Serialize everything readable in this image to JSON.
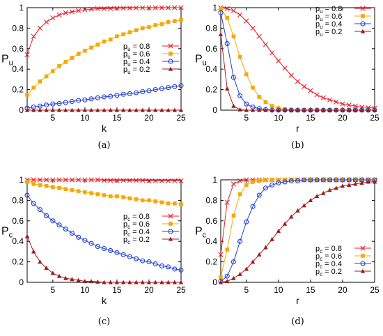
{
  "series_styles": [
    {
      "color": "#e8202a",
      "marker": "x"
    },
    {
      "color": "#f7a800",
      "marker": "square"
    },
    {
      "color": "#1f3fd8",
      "marker": "circle"
    },
    {
      "color": "#9e1b1b",
      "marker": "triangle"
    }
  ],
  "chart_data": [
    {
      "panel": "(a)",
      "type": "line",
      "xlabel": "k",
      "ylabel": "P",
      "ylabel_sub": "u",
      "xlim": [
        1,
        25
      ],
      "ylim": [
        0,
        1
      ],
      "xticks": [
        5,
        10,
        15,
        20,
        25
      ],
      "yticks": [
        0,
        0.2,
        0.4,
        0.6,
        0.8,
        1
      ],
      "ytick_labels": [
        "0",
        "0.2",
        "0.4",
        "0.6",
        "0.8",
        "1"
      ],
      "legend": "middle-right",
      "x": [
        1,
        2,
        3,
        4,
        5,
        6,
        7,
        8,
        9,
        10,
        11,
        12,
        13,
        14,
        15,
        16,
        17,
        18,
        19,
        20,
        21,
        22,
        23,
        24,
        25
      ],
      "series": [
        {
          "name": "pu = 0.8",
          "label_main": "p",
          "label_sub": "u",
          "label_val": " = 0.8",
          "values": [
            0.54,
            0.72,
            0.8,
            0.86,
            0.9,
            0.93,
            0.95,
            0.96,
            0.97,
            0.98,
            0.985,
            0.99,
            0.99,
            0.993,
            0.995,
            0.996,
            0.997,
            0.998,
            0.998,
            0.999,
            0.999,
            0.999,
            0.999,
            1.0,
            1.0
          ]
        },
        {
          "name": "pu = 0.6",
          "label_main": "p",
          "label_sub": "u",
          "label_val": " = 0.6",
          "values": [
            0.15,
            0.22,
            0.28,
            0.33,
            0.38,
            0.43,
            0.47,
            0.51,
            0.55,
            0.58,
            0.61,
            0.64,
            0.67,
            0.69,
            0.72,
            0.74,
            0.76,
            0.78,
            0.8,
            0.81,
            0.83,
            0.84,
            0.86,
            0.87,
            0.88
          ]
        },
        {
          "name": "pu = 0.4",
          "label_main": "p",
          "label_sub": "u",
          "label_val": " = 0.4",
          "values": [
            0.02,
            0.03,
            0.04,
            0.05,
            0.06,
            0.065,
            0.075,
            0.085,
            0.095,
            0.1,
            0.11,
            0.12,
            0.13,
            0.135,
            0.145,
            0.155,
            0.16,
            0.17,
            0.18,
            0.19,
            0.2,
            0.21,
            0.22,
            0.23,
            0.24
          ]
        },
        {
          "name": "pu = 0.2",
          "label_main": "p",
          "label_sub": "u",
          "label_val": " = 0.2",
          "values": [
            0.0,
            0.0,
            0.0,
            0.0,
            0.0,
            0.0,
            0.0,
            0.0,
            0.0,
            0.0,
            0.0,
            0.0,
            0.0,
            0.0,
            0.0,
            0.0,
            0.0,
            0.0,
            0.0,
            0.0,
            0.0,
            0.0,
            0.0,
            0.0,
            0.0
          ]
        }
      ]
    },
    {
      "panel": "(b)",
      "type": "line",
      "xlabel": "r",
      "ylabel": "P",
      "ylabel_sub": "u",
      "xlim": [
        1,
        25
      ],
      "ylim": [
        0,
        1
      ],
      "xticks": [
        5,
        10,
        15,
        20,
        25
      ],
      "yticks": [
        0,
        0.2,
        0.4,
        0.6,
        0.8,
        1
      ],
      "ytick_labels": [
        "0",
        "0.2",
        "0.4",
        "0.6",
        "0.8",
        "1"
      ],
      "legend": "top-right",
      "x": [
        1,
        2,
        3,
        4,
        5,
        6,
        7,
        8,
        9,
        10,
        11,
        12,
        13,
        14,
        15,
        16,
        17,
        18,
        19,
        20,
        21,
        22,
        23,
        24,
        25
      ],
      "series": [
        {
          "name": "pu = 0.8",
          "label_main": "p",
          "label_sub": "u",
          "label_val": " = 0.8",
          "values": [
            1.0,
            0.99,
            0.97,
            0.93,
            0.87,
            0.8,
            0.72,
            0.64,
            0.56,
            0.48,
            0.41,
            0.34,
            0.28,
            0.23,
            0.19,
            0.15,
            0.12,
            0.1,
            0.08,
            0.06,
            0.05,
            0.04,
            0.03,
            0.025,
            0.02
          ]
        },
        {
          "name": "pu = 0.6",
          "label_main": "p",
          "label_sub": "u",
          "label_val": " = 0.6",
          "values": [
            0.99,
            0.9,
            0.72,
            0.52,
            0.35,
            0.22,
            0.13,
            0.08,
            0.04,
            0.02,
            0.01,
            0.005,
            0.0,
            0.0,
            0.0,
            0.0,
            0.0,
            0.0,
            0.0,
            0.0,
            0.0,
            0.0,
            0.0,
            0.0,
            0.0
          ]
        },
        {
          "name": "pu = 0.4",
          "label_main": "p",
          "label_sub": "u",
          "label_val": " = 0.4",
          "values": [
            0.95,
            0.65,
            0.32,
            0.14,
            0.06,
            0.03,
            0.015,
            0.005,
            0.0,
            0.0,
            0.0,
            0.0,
            0.0,
            0.0,
            0.0,
            0.0,
            0.0,
            0.0,
            0.0,
            0.0,
            0.0,
            0.0,
            0.0,
            0.0,
            0.0
          ]
        },
        {
          "name": "pu = 0.2",
          "label_main": "p",
          "label_sub": "u",
          "label_val": " = 0.2",
          "values": [
            0.74,
            0.21,
            0.04,
            0.005,
            0.0,
            0.0,
            0.0,
            0.0,
            0.0,
            0.0,
            0.0,
            0.0,
            0.0,
            0.0,
            0.0,
            0.0,
            0.0,
            0.0,
            0.0,
            0.0,
            0.0,
            0.0,
            0.0,
            0.0,
            0.0
          ]
        }
      ]
    },
    {
      "panel": "(c)",
      "type": "line",
      "xlabel": "k",
      "ylabel": "P",
      "ylabel_sub": "c",
      "xlim": [
        1,
        25
      ],
      "ylim": [
        0,
        1
      ],
      "xticks": [
        5,
        10,
        15,
        20,
        25
      ],
      "yticks": [
        0,
        0.2,
        0.4,
        0.6,
        0.8,
        1
      ],
      "ytick_labels": [
        "0",
        "0.2",
        "0.4",
        "0.6",
        "0.8",
        "1"
      ],
      "legend": "middle-right",
      "x": [
        1,
        2,
        3,
        4,
        5,
        6,
        7,
        8,
        9,
        10,
        11,
        12,
        13,
        14,
        15,
        16,
        17,
        18,
        19,
        20,
        21,
        22,
        23,
        24,
        25
      ],
      "series": [
        {
          "name": "pc = 0.8",
          "label_main": "p",
          "label_sub": "c",
          "label_val": " = 0.8",
          "values": [
            1.0,
            1.0,
            1.0,
            1.0,
            1.0,
            1.0,
            1.0,
            1.0,
            1.0,
            1.0,
            1.0,
            1.0,
            0.995,
            0.995,
            0.995,
            0.995,
            0.995,
            0.995,
            0.995,
            0.99,
            0.99,
            0.99,
            0.99,
            0.99,
            0.99
          ]
        },
        {
          "name": "pc = 0.6",
          "label_main": "p",
          "label_sub": "c",
          "label_val": " = 0.6",
          "values": [
            0.98,
            0.96,
            0.95,
            0.94,
            0.93,
            0.92,
            0.91,
            0.9,
            0.89,
            0.88,
            0.87,
            0.86,
            0.85,
            0.84,
            0.84,
            0.83,
            0.82,
            0.81,
            0.8,
            0.8,
            0.79,
            0.78,
            0.77,
            0.77,
            0.76
          ]
        },
        {
          "name": "pc = 0.4",
          "label_main": "p",
          "label_sub": "c",
          "label_val": " = 0.4",
          "values": [
            0.85,
            0.77,
            0.71,
            0.65,
            0.6,
            0.56,
            0.52,
            0.48,
            0.44,
            0.41,
            0.38,
            0.35,
            0.33,
            0.31,
            0.29,
            0.27,
            0.25,
            0.23,
            0.21,
            0.2,
            0.18,
            0.16,
            0.15,
            0.13,
            0.12
          ]
        },
        {
          "name": "pc = 0.2",
          "label_main": "p",
          "label_sub": "c",
          "label_val": " = 0.2",
          "values": [
            0.45,
            0.3,
            0.2,
            0.14,
            0.09,
            0.06,
            0.04,
            0.03,
            0.02,
            0.01,
            0.01,
            0.005,
            0.0,
            0.0,
            0.0,
            0.0,
            0.0,
            0.0,
            0.0,
            0.0,
            0.0,
            0.0,
            0.0,
            0.0,
            0.0
          ]
        }
      ]
    },
    {
      "panel": "(d)",
      "type": "line",
      "xlabel": "r",
      "ylabel": "P",
      "ylabel_sub": "c",
      "xlim": [
        1,
        25
      ],
      "ylim": [
        0,
        1
      ],
      "xticks": [
        5,
        10,
        15,
        20,
        25
      ],
      "yticks": [
        0,
        0.2,
        0.4,
        0.6,
        0.8,
        1
      ],
      "ytick_labels": [
        "0",
        "0.2",
        "0.4",
        "0.6",
        "0.8",
        "1"
      ],
      "legend": "bottom-right",
      "x": [
        1,
        2,
        3,
        4,
        5,
        6,
        7,
        8,
        9,
        10,
        11,
        12,
        13,
        14,
        15,
        16,
        17,
        18,
        19,
        20,
        21,
        22,
        23,
        24,
        25
      ],
      "series": [
        {
          "name": "pc = 0.8",
          "label_main": "p",
          "label_sub": "c",
          "label_val": " = 0.8",
          "values": [
            0.27,
            0.78,
            0.96,
            0.99,
            1.0,
            1.0,
            1.0,
            1.0,
            1.0,
            1.0,
            1.0,
            1.0,
            1.0,
            1.0,
            1.0,
            1.0,
            1.0,
            1.0,
            1.0,
            1.0,
            1.0,
            1.0,
            1.0,
            1.0,
            1.0
          ]
        },
        {
          "name": "pc = 0.6",
          "label_main": "p",
          "label_sub": "c",
          "label_val": " = 0.6",
          "values": [
            0.05,
            0.32,
            0.65,
            0.86,
            0.95,
            0.98,
            0.99,
            1.0,
            1.0,
            1.0,
            1.0,
            1.0,
            1.0,
            1.0,
            1.0,
            1.0,
            1.0,
            1.0,
            1.0,
            1.0,
            1.0,
            1.0,
            1.0,
            1.0,
            1.0
          ]
        },
        {
          "name": "pc = 0.4",
          "label_main": "p",
          "label_sub": "c",
          "label_val": " = 0.4",
          "values": [
            0.01,
            0.06,
            0.2,
            0.4,
            0.59,
            0.74,
            0.85,
            0.92,
            0.95,
            0.97,
            0.98,
            0.99,
            0.99,
            1.0,
            1.0,
            1.0,
            1.0,
            1.0,
            1.0,
            1.0,
            1.0,
            1.0,
            1.0,
            1.0,
            1.0
          ]
        },
        {
          "name": "pc = 0.2",
          "label_main": "p",
          "label_sub": "c",
          "label_val": " = 0.2",
          "values": [
            0.0,
            0.01,
            0.04,
            0.08,
            0.13,
            0.2,
            0.27,
            0.34,
            0.42,
            0.5,
            0.57,
            0.64,
            0.7,
            0.75,
            0.8,
            0.84,
            0.87,
            0.9,
            0.92,
            0.94,
            0.95,
            0.96,
            0.97,
            0.98,
            0.98
          ]
        }
      ]
    }
  ]
}
